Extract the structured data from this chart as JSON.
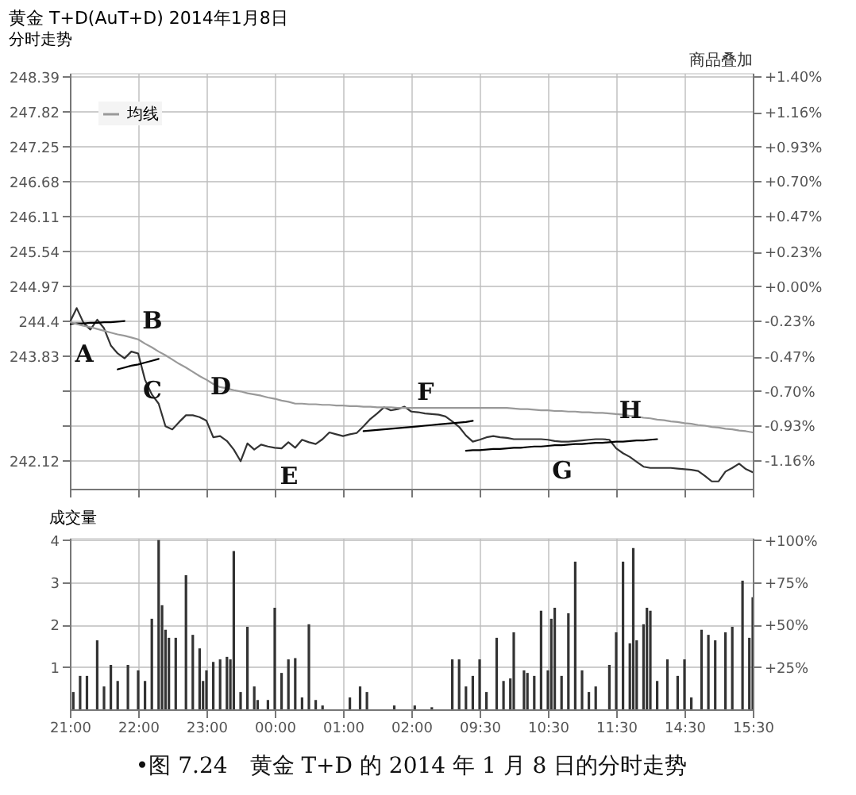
{
  "chart_data": [
    {
      "type": "line",
      "title": "黄金 T+D(AuT+D) 2014年1月8日",
      "subtitle": "分时走势",
      "categories": [
        "21:00",
        null,
        null,
        null,
        null,
        null,
        null,
        null,
        null,
        null,
        "22:00",
        null,
        null,
        null,
        null,
        null,
        null,
        null,
        null,
        null,
        "23:00",
        null,
        null,
        null,
        null,
        null,
        null,
        null,
        null,
        null,
        "00:00",
        null,
        null,
        null,
        null,
        null,
        null,
        null,
        null,
        null,
        "01:00",
        null,
        null,
        null,
        null,
        null,
        null,
        null,
        null,
        null,
        "02:00",
        null,
        null,
        null,
        null,
        null,
        null,
        null,
        null,
        null,
        "09:30",
        null,
        null,
        null,
        null,
        null,
        null,
        null,
        null,
        null,
        "10:30",
        null,
        null,
        null,
        null,
        null,
        null,
        null,
        null,
        null,
        "11:30",
        null,
        null,
        null,
        null,
        null,
        null,
        null,
        null,
        null,
        "14:30",
        null,
        null,
        null,
        null,
        null,
        null,
        null,
        null,
        null,
        "15:30"
      ],
      "ylim": [
        241.66,
        248.45
      ],
      "yticks": [
        248.39,
        247.82,
        247.25,
        246.68,
        246.11,
        245.54,
        244.97,
        244.4,
        243.83,
        {
          "value": 243.26,
          "label": null
        },
        {
          "value": 242.69,
          "label": null
        },
        242.12
      ],
      "y2lim": [
        -1.351,
        1.4206
      ],
      "y2ticks": [
        {
          "value": 1.4,
          "label": "+1.40%"
        },
        {
          "value": 1.16,
          "label": "+1.16%"
        },
        {
          "value": 0.93,
          "label": "+0.93%"
        },
        {
          "value": 0.7,
          "label": "+0.70%"
        },
        {
          "value": 0.47,
          "label": "+0.47%"
        },
        {
          "value": 0.23,
          "label": "+0.23%"
        },
        {
          "value": 0,
          "label": "+0.00%"
        },
        {
          "value": -0.23,
          "label": "-0.23%"
        },
        {
          "value": -0.47,
          "label": "-0.47%"
        },
        {
          "value": -0.7,
          "label": "-0.70%"
        },
        {
          "value": -0.93,
          "label": "-0.93%"
        },
        {
          "value": -1.16,
          "label": "-1.16%"
        }
      ],
      "grid": true,
      "tick_labels": "y",
      "legend": "top left",
      "series": [
        {
          "color": "#333333",
          "values": [
            244.38,
            244.61,
            244.37,
            244.26,
            244.42,
            244.28,
            244.0,
            243.87,
            243.79,
            243.9,
            243.87,
            243.44,
            243.2,
            243.05,
            242.68,
            242.63,
            242.75,
            242.86,
            242.86,
            242.83,
            242.77,
            242.5,
            242.52,
            242.44,
            242.3,
            242.11,
            242.4,
            242.3,
            242.38,
            242.35,
            242.33,
            242.32,
            242.42,
            242.33,
            242.46,
            242.42,
            242.39,
            242.47,
            242.58,
            242.55,
            242.52,
            242.55,
            242.57,
            242.68,
            242.8,
            242.89,
            242.99,
            242.94,
            242.96,
            243.0,
            242.92,
            242.91,
            242.89,
            242.88,
            242.87,
            242.84,
            242.76,
            242.67,
            242.53,
            242.43,
            242.46,
            242.5,
            242.52,
            242.5,
            242.49,
            242.47,
            242.47,
            242.47,
            242.47,
            242.47,
            242.46,
            242.44,
            242.43,
            242.43,
            242.44,
            242.45,
            242.46,
            242.47,
            242.47,
            242.46,
            242.32,
            242.24,
            242.18,
            242.1,
            242.02,
            242.0,
            242.0,
            242.0,
            242.0,
            241.99,
            241.98,
            241.97,
            241.95,
            241.87,
            241.78,
            241.78,
            241.94,
            242.0,
            242.07,
            241.98,
            241.93
          ]
        },
        {
          "name": "均线",
          "color": "#999999",
          "values": [
            244.38,
            244.35,
            244.32,
            244.3,
            244.27,
            244.24,
            244.21,
            244.18,
            244.16,
            244.13,
            244.1,
            244.03,
            243.97,
            243.9,
            243.84,
            243.77,
            243.7,
            243.64,
            243.57,
            243.5,
            243.44,
            243.37,
            243.32,
            243.3,
            243.27,
            243.25,
            243.22,
            243.2,
            243.18,
            243.15,
            243.13,
            243.1,
            243.08,
            243.05,
            243.05,
            243.04,
            243.04,
            243.03,
            243.03,
            243.02,
            243.02,
            243.01,
            243.01,
            243.0,
            243.0,
            242.99,
            242.99,
            242.99,
            242.98,
            242.98,
            242.98,
            242.98,
            242.98,
            242.98,
            242.98,
            242.98,
            242.98,
            242.98,
            242.98,
            242.98,
            242.98,
            242.98,
            242.98,
            242.98,
            242.98,
            242.97,
            242.96,
            242.96,
            242.95,
            242.94,
            242.94,
            242.93,
            242.93,
            242.92,
            242.92,
            242.91,
            242.91,
            242.9,
            242.9,
            242.89,
            242.88,
            242.87,
            242.85,
            242.84,
            242.82,
            242.81,
            242.79,
            242.78,
            242.76,
            242.75,
            242.73,
            242.72,
            242.7,
            242.69,
            242.67,
            242.66,
            242.64,
            242.63,
            242.61,
            242.6,
            242.58
          ]
        },
        {
          "color": "#000000",
          "values": [
            244.35,
            244.36,
            244.36,
            244.37,
            244.37,
            244.38,
            244.38,
            244.39,
            244.4,
            null,
            null,
            null,
            null,
            null,
            null,
            null,
            null,
            null,
            null,
            null,
            null,
            null,
            null,
            null,
            null,
            null,
            null,
            null,
            null,
            null,
            null,
            null,
            null,
            null,
            null,
            null,
            null,
            null,
            null,
            null,
            null,
            null,
            null,
            null,
            null,
            null,
            null,
            null,
            null,
            null,
            null,
            null,
            null,
            null,
            null,
            null,
            null,
            null,
            null,
            null,
            null,
            null,
            null,
            null,
            null,
            null,
            null,
            null,
            null,
            null,
            null,
            null,
            null,
            null,
            null,
            null,
            null,
            null,
            null,
            null,
            null,
            null,
            null,
            null,
            null,
            null,
            null,
            null,
            null,
            null,
            null,
            null,
            null,
            null,
            null,
            null,
            null,
            null,
            null,
            null,
            null
          ]
        },
        {
          "color": "#000000",
          "values": [
            null,
            null,
            null,
            null,
            null,
            null,
            null,
            243.61,
            243.64,
            243.67,
            243.69,
            243.72,
            243.75,
            243.78,
            null,
            null,
            null,
            null,
            null,
            null,
            null,
            null,
            null,
            null,
            null,
            null,
            null,
            null,
            null,
            null,
            null,
            null,
            null,
            null,
            null,
            null,
            null,
            null,
            null,
            null,
            null,
            null,
            null,
            null,
            null,
            null,
            null,
            null,
            null,
            null,
            null,
            null,
            null,
            null,
            null,
            null,
            null,
            null,
            null,
            null,
            null,
            null,
            null,
            null,
            null,
            null,
            null,
            null,
            null,
            null,
            null,
            null,
            null,
            null,
            null,
            null,
            null,
            null,
            null,
            null,
            null,
            null,
            null,
            null,
            null,
            null,
            null,
            null,
            null,
            null,
            null,
            null,
            null,
            null,
            null,
            null,
            null,
            null,
            null,
            null,
            null
          ]
        },
        {
          "color": "#000000",
          "values": [
            null,
            null,
            null,
            null,
            null,
            null,
            null,
            null,
            null,
            null,
            null,
            null,
            null,
            null,
            null,
            null,
            null,
            null,
            null,
            null,
            null,
            null,
            null,
            null,
            null,
            null,
            null,
            null,
            null,
            null,
            null,
            null,
            null,
            null,
            null,
            null,
            null,
            null,
            null,
            null,
            null,
            null,
            null,
            242.6,
            242.61,
            242.62,
            242.63,
            242.64,
            242.65,
            242.66,
            242.67,
            242.68,
            242.69,
            242.7,
            242.71,
            242.72,
            242.73,
            242.74,
            242.75,
            242.77,
            null,
            null,
            null,
            null,
            null,
            null,
            null,
            null,
            null,
            null,
            null,
            null,
            null,
            null,
            null,
            null,
            null,
            null,
            null,
            null,
            null,
            null,
            null,
            null,
            null,
            null,
            null,
            null,
            null,
            null,
            null,
            null,
            null,
            null,
            null,
            null,
            null,
            null,
            null,
            null,
            null
          ]
        },
        {
          "color": "#000000",
          "values": [
            null,
            null,
            null,
            null,
            null,
            null,
            null,
            null,
            null,
            null,
            null,
            null,
            null,
            null,
            null,
            null,
            null,
            null,
            null,
            null,
            null,
            null,
            null,
            null,
            null,
            null,
            null,
            null,
            null,
            null,
            null,
            null,
            null,
            null,
            null,
            null,
            null,
            null,
            null,
            null,
            null,
            null,
            null,
            null,
            null,
            null,
            null,
            null,
            null,
            null,
            null,
            null,
            null,
            null,
            null,
            null,
            null,
            null,
            242.28,
            242.29,
            242.29,
            242.3,
            242.31,
            242.31,
            242.32,
            242.33,
            242.33,
            242.34,
            242.35,
            242.35,
            242.36,
            242.37,
            242.37,
            242.38,
            242.39,
            242.39,
            242.4,
            242.41,
            242.41,
            242.42,
            242.43,
            242.43,
            242.44,
            242.45,
            242.45,
            242.46,
            242.47,
            null,
            null,
            null,
            null,
            null,
            null,
            null,
            null,
            null,
            null,
            null,
            null,
            null,
            null
          ]
        }
      ],
      "annotations": [
        "商品叠加",
        {
          "text": "A",
          "x": "21:00",
          "y": 244.33
        },
        {
          "text": "B",
          "x": "22:00",
          "y": 243.94
        },
        {
          "text": "C",
          "x": "22:00",
          "y": 243.73
        },
        {
          "text": "D",
          "x": "23:00",
          "y": 242.86
        },
        {
          "text": "E",
          "x": "00:00",
          "y": 242.33
        },
        {
          "text": "F",
          "x": "02:00",
          "y": 242.77
        },
        {
          "text": "G",
          "x": "10:30",
          "y": 242.42
        },
        {
          "text": "H",
          "x": "11:30",
          "y": 242.47
        }
      ]
    },
    {
      "type": "bar",
      "title": "成交量",
      "categories": [
        "21:00",
        null,
        null,
        null,
        null,
        null,
        null,
        null,
        null,
        null,
        null,
        null,
        null,
        null,
        null,
        null,
        null,
        null,
        null,
        null,
        "22:00",
        null,
        null,
        null,
        null,
        null,
        null,
        null,
        null,
        null,
        null,
        null,
        null,
        null,
        null,
        null,
        null,
        null,
        null,
        null,
        "23:00",
        null,
        null,
        null,
        null,
        null,
        null,
        null,
        null,
        null,
        null,
        null,
        null,
        null,
        null,
        null,
        null,
        null,
        null,
        null,
        "00:00",
        null,
        null,
        null,
        null,
        null,
        null,
        null,
        null,
        null,
        null,
        null,
        null,
        null,
        null,
        null,
        null,
        null,
        null,
        null,
        "01:00",
        null,
        null,
        null,
        null,
        null,
        null,
        null,
        null,
        null,
        null,
        null,
        null,
        null,
        null,
        null,
        null,
        null,
        null,
        null,
        "02:00",
        null,
        null,
        null,
        null,
        null,
        null,
        null,
        null,
        null,
        null,
        null,
        null,
        null,
        null,
        null,
        null,
        null,
        null,
        null,
        "09:30",
        null,
        null,
        null,
        null,
        null,
        null,
        null,
        null,
        null,
        null,
        null,
        null,
        null,
        null,
        null,
        null,
        null,
        null,
        null,
        "10:30",
        null,
        null,
        null,
        null,
        null,
        null,
        null,
        null,
        null,
        null,
        null,
        null,
        null,
        null,
        null,
        null,
        null,
        null,
        null,
        "11:30",
        null,
        null,
        null,
        null,
        null,
        null,
        null,
        null,
        null,
        null,
        null,
        null,
        null,
        null,
        null,
        null,
        null,
        null,
        null,
        "14:30",
        null,
        null,
        null,
        null,
        null,
        null,
        null,
        null,
        null,
        null,
        null,
        null,
        null,
        null,
        null,
        null,
        null,
        null,
        null,
        "15:30"
      ],
      "ylim": [
        0,
        4.05
      ],
      "yticks": [
        1,
        2,
        3,
        4
      ],
      "y2lim": [
        0,
        101.25
      ],
      "y2ticks": [
        {
          "value": 25,
          "label": "+25%"
        },
        {
          "value": 50,
          "label": "+50%"
        },
        {
          "value": 75,
          "label": "+75%"
        },
        {
          "value": 100,
          "label": "+100%"
        }
      ],
      "grid": true,
      "series": [
        {
          "color": "#333333",
          "values": [
            null,
            0.41,
            null,
            0.79,
            null,
            0.79,
            null,
            null,
            1.63,
            null,
            0.54,
            null,
            1.05,
            null,
            0.67,
            null,
            null,
            1.05,
            null,
            null,
            0.92,
            null,
            0.67,
            null,
            2.14,
            null,
            4.0,
            2.46,
            1.88,
            1.69,
            null,
            1.69,
            null,
            null,
            3.17,
            null,
            1.76,
            null,
            1.44,
            0.67,
            0.92,
            null,
            1.12,
            null,
            1.18,
            null,
            1.24,
            1.18,
            3.74,
            null,
            0.41,
            null,
            1.95,
            null,
            0.54,
            0.22,
            null,
            null,
            0.22,
            null,
            2.4,
            null,
            0.86,
            null,
            1.18,
            null,
            1.21,
            null,
            0.28,
            null,
            2.01,
            null,
            0.22,
            null,
            0.09,
            null,
            null,
            null,
            null,
            null,
            null,
            null,
            0.28,
            null,
            null,
            0.54,
            null,
            0.41,
            null,
            null,
            null,
            null,
            null,
            null,
            null,
            0.09,
            null,
            null,
            null,
            null,
            null,
            0.09,
            null,
            null,
            null,
            null,
            0.05,
            null,
            null,
            null,
            null,
            null,
            1.18,
            null,
            1.18,
            null,
            0.54,
            null,
            0.79,
            null,
            1.18,
            null,
            0.41,
            null,
            null,
            1.69,
            null,
            0.67,
            null,
            0.73,
            1.82,
            null,
            null,
            0.92,
            0.86,
            null,
            0.79,
            null,
            2.33,
            null,
            0.92,
            2.14,
            2.4,
            null,
            0.79,
            null,
            2.27,
            null,
            3.49,
            null,
            0.92,
            null,
            0.41,
            null,
            0.54,
            null,
            null,
            null,
            1.05,
            null,
            1.82,
            null,
            3.49,
            null,
            1.56,
            3.81,
            1.63,
            null,
            2.01,
            2.4,
            2.33,
            null,
            0.67,
            null,
            null,
            1.18,
            null,
            null,
            0.79,
            null,
            1.18,
            null,
            0.28,
            null,
            null,
            1.88,
            null,
            1.76,
            null,
            1.63,
            null,
            null,
            1.82,
            null,
            1.95,
            null,
            null,
            3.04,
            null,
            1.69,
            2.65
          ]
        }
      ],
      "annotations": [
        "•图 7.24　黄金 T+D 的 2014 年 1 月 8 日的分时走势"
      ]
    }
  ]
}
